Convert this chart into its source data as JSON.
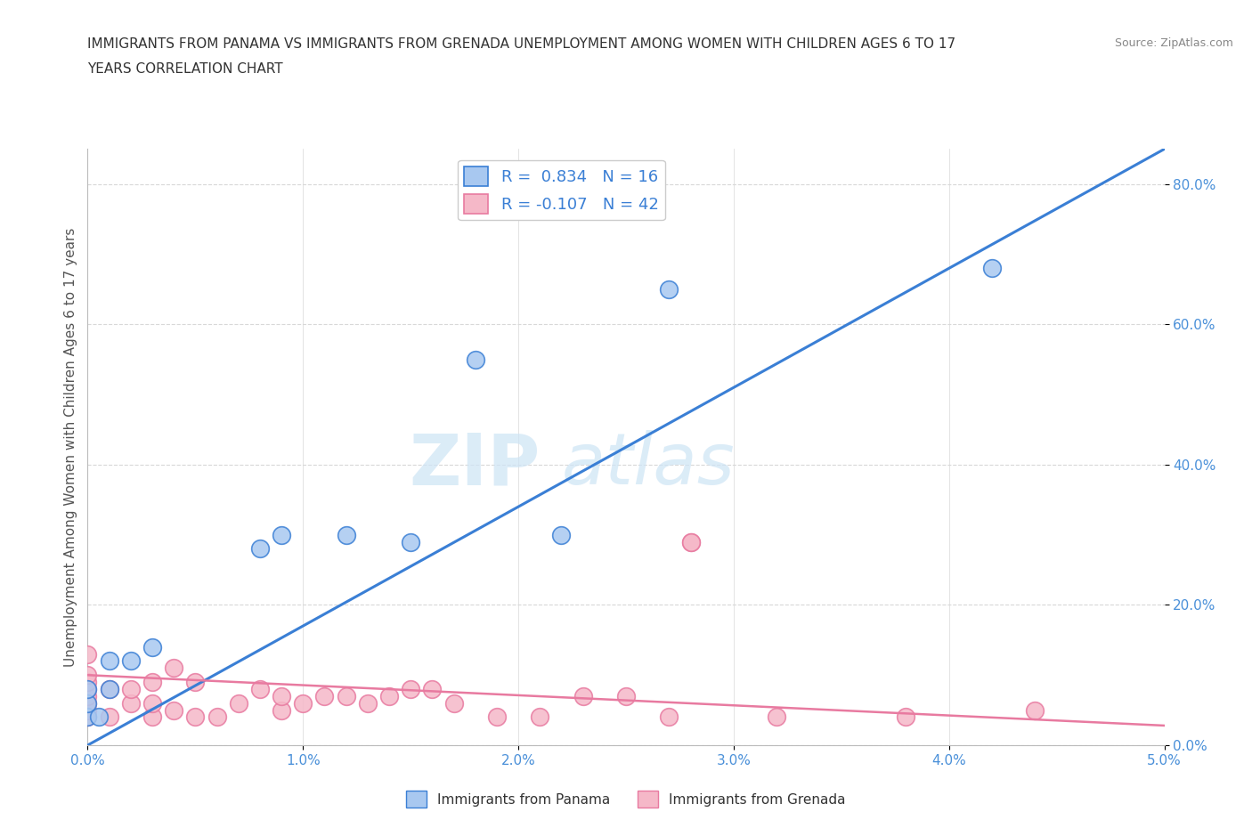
{
  "title_line1": "IMMIGRANTS FROM PANAMA VS IMMIGRANTS FROM GRENADA UNEMPLOYMENT AMONG WOMEN WITH CHILDREN AGES 6 TO 17",
  "title_line2": "YEARS CORRELATION CHART",
  "source": "Source: ZipAtlas.com",
  "ylabel": "Unemployment Among Women with Children Ages 6 to 17 years",
  "xlim": [
    0.0,
    0.05
  ],
  "ylim": [
    0.0,
    0.85
  ],
  "xticks": [
    0.0,
    0.01,
    0.02,
    0.03,
    0.04,
    0.05
  ],
  "xticklabels": [
    "0.0%",
    "1.0%",
    "2.0%",
    "3.0%",
    "4.0%",
    "5.0%"
  ],
  "yticks": [
    0.0,
    0.2,
    0.4,
    0.6,
    0.8
  ],
  "yticklabels": [
    "0.0%",
    "20.0%",
    "40.0%",
    "60.0%",
    "80.0%"
  ],
  "panama_color": "#a8c8f0",
  "grenada_color": "#f5b8c8",
  "panama_line_color": "#3a7fd5",
  "grenada_line_color": "#e87aa0",
  "legend_r_panama": "0.834",
  "legend_n_panama": "16",
  "legend_r_grenada": "-0.107",
  "legend_n_grenada": "42",
  "watermark_zip": "ZIP",
  "watermark_atlas": "atlas",
  "background_color": "#ffffff",
  "grid_color": "#d8d8d8",
  "panama_line_x0": 0.0,
  "panama_line_y0": 0.0,
  "panama_line_x1": 0.05,
  "panama_line_y1": 0.85,
  "grenada_line_x0": 0.0,
  "grenada_line_y0": 0.1,
  "grenada_line_x1": 0.05,
  "grenada_line_y1": 0.028,
  "panama_scatter_x": [
    0.0,
    0.0,
    0.0,
    0.0005,
    0.001,
    0.001,
    0.002,
    0.003,
    0.008,
    0.009,
    0.012,
    0.015,
    0.018,
    0.022,
    0.027,
    0.042
  ],
  "panama_scatter_y": [
    0.04,
    0.06,
    0.08,
    0.04,
    0.08,
    0.12,
    0.12,
    0.14,
    0.28,
    0.3,
    0.3,
    0.29,
    0.55,
    0.3,
    0.65,
    0.68
  ],
  "grenada_scatter_x": [
    0.0,
    0.0,
    0.0,
    0.0,
    0.0,
    0.0,
    0.0,
    0.0,
    0.001,
    0.001,
    0.002,
    0.002,
    0.003,
    0.003,
    0.003,
    0.004,
    0.004,
    0.005,
    0.005,
    0.006,
    0.007,
    0.008,
    0.009,
    0.009,
    0.01,
    0.011,
    0.012,
    0.013,
    0.014,
    0.015,
    0.016,
    0.017,
    0.019,
    0.021,
    0.023,
    0.025,
    0.027,
    0.028,
    0.028,
    0.032,
    0.038,
    0.044
  ],
  "grenada_scatter_y": [
    0.04,
    0.05,
    0.06,
    0.07,
    0.08,
    0.09,
    0.1,
    0.13,
    0.04,
    0.08,
    0.06,
    0.08,
    0.04,
    0.06,
    0.09,
    0.05,
    0.11,
    0.04,
    0.09,
    0.04,
    0.06,
    0.08,
    0.05,
    0.07,
    0.06,
    0.07,
    0.07,
    0.06,
    0.07,
    0.08,
    0.08,
    0.06,
    0.04,
    0.04,
    0.07,
    0.07,
    0.04,
    0.29,
    0.29,
    0.04,
    0.04,
    0.05
  ],
  "tick_color": "#4a90d9",
  "label_color": "#555555"
}
